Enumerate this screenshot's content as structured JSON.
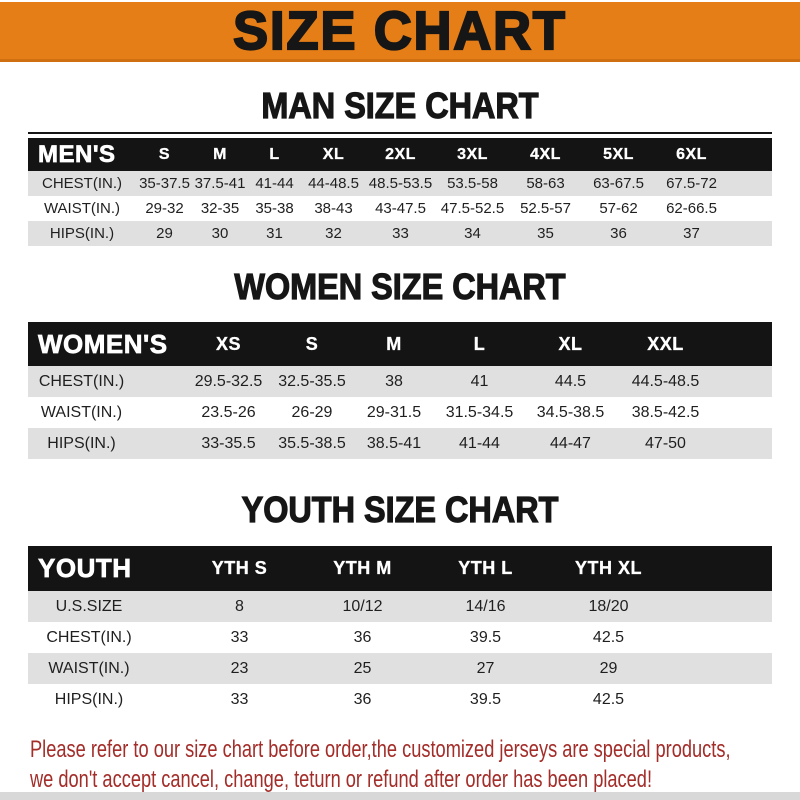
{
  "banner": {
    "title": "SIZE CHART",
    "bg_color": "#E57E17",
    "text_color": "#161616"
  },
  "sections": [
    {
      "heading": "MAN SIZE CHART",
      "table": {
        "header_label": "MEN'S",
        "columns": [
          "S",
          "M",
          "L",
          "XL",
          "2XL",
          "3XL",
          "4XL",
          "5XL",
          "6XL"
        ],
        "rows": [
          {
            "label": "CHEST(IN.)",
            "values": [
              "35-37.5",
              "37.5-41",
              "41-44",
              "44-48.5",
              "48.5-53.5",
              "53.5-58",
              "58-63",
              "63-67.5",
              "67.5-72"
            ]
          },
          {
            "label": "WAIST(IN.)",
            "values": [
              "29-32",
              "32-35",
              "35-38",
              "38-43",
              "43-47.5",
              "47.5-52.5",
              "52.5-57",
              "57-62",
              "62-66.5"
            ]
          },
          {
            "label": "HIPS(IN.)",
            "values": [
              "29",
              "30",
              "31",
              "32",
              "33",
              "34",
              "35",
              "36",
              "37"
            ]
          }
        ]
      }
    },
    {
      "heading": "WOMEN SIZE CHART",
      "table": {
        "header_label": "WOMEN'S",
        "columns": [
          "XS",
          "S",
          "M",
          "L",
          "XL",
          "XXL"
        ],
        "rows": [
          {
            "label": "CHEST(IN.)",
            "values": [
              "29.5-32.5",
              "32.5-35.5",
              "38",
              "41",
              "44.5",
              "44.5-48.5"
            ]
          },
          {
            "label": "WAIST(IN.)",
            "values": [
              "23.5-26",
              "26-29",
              "29-31.5",
              "31.5-34.5",
              "34.5-38.5",
              "38.5-42.5"
            ]
          },
          {
            "label": "HIPS(IN.)",
            "values": [
              "33-35.5",
              "35.5-38.5",
              "38.5-41",
              "41-44",
              "44-47",
              "47-50"
            ]
          }
        ]
      }
    },
    {
      "heading": "YOUTH SIZE CHART",
      "table": {
        "header_label": "YOUTH",
        "columns": [
          "YTH S",
          "YTH M",
          "YTH L",
          "YTH XL"
        ],
        "rows": [
          {
            "label": "U.S.SIZE",
            "values": [
              "8",
              "10/12",
              "14/16",
              "18/20"
            ]
          },
          {
            "label": "CHEST(IN.)",
            "values": [
              "33",
              "36",
              "39.5",
              "42.5"
            ]
          },
          {
            "label": "WAIST(IN.)",
            "values": [
              "23",
              "25",
              "27",
              "29"
            ]
          },
          {
            "label": "HIPS(IN.)",
            "values": [
              "33",
              "36",
              "39.5",
              "42.5"
            ]
          }
        ]
      }
    }
  ],
  "footer": {
    "line1": "Please refer to our size chart before order,the customized jerseys are special products,",
    "line2": "we don't accept cancel, change, teturn or refund after order has been placed!",
    "text_color": "#A32D29"
  },
  "style_colors": {
    "table_header_bg": "#141414",
    "row_alt_bg": "#E0E0E0"
  }
}
